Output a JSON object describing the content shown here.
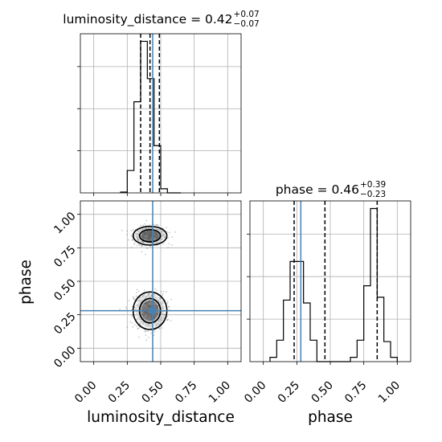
{
  "chart_data": {
    "type": "corner",
    "truth_color": "#4682b4",
    "params": [
      {
        "name": "luminosity_distance",
        "title": {
          "prefix": "luminosity_distance = ",
          "median": "0.42",
          "plus": "+0.07",
          "minus": "−0.07"
        },
        "range": [
          -0.1,
          1.1
        ],
        "ticks": [
          "0.00",
          "0.25",
          "0.50",
          "0.75",
          "1.00"
        ],
        "tick_values": [
          0,
          0.25,
          0.5,
          0.75,
          1.0
        ],
        "truth": 0.44,
        "quantiles": [
          0.35,
          0.42,
          0.49
        ],
        "hist": {
          "edges": [
            0.2,
            0.25,
            0.3,
            0.35,
            0.4,
            0.45,
            0.5,
            0.55,
            0.6,
            0.65
          ],
          "counts": [
            1,
            27,
            110,
            183,
            138,
            57,
            5,
            0,
            0
          ]
        }
      },
      {
        "name": "phase",
        "title": {
          "prefix": "phase = ",
          "median": "0.46",
          "plus": "+0.39",
          "minus": "−0.23"
        },
        "range": [
          -0.1,
          1.1
        ],
        "ticks": [
          "0.00",
          "0.25",
          "0.50",
          "0.75",
          "1.00"
        ],
        "tick_values": [
          0,
          0.25,
          0.5,
          0.75,
          1.0
        ],
        "truth": 0.28,
        "quantiles": [
          0.23,
          0.46,
          0.85
        ],
        "hist": {
          "edges": [
            0.05,
            0.1,
            0.15,
            0.2,
            0.25,
            0.3,
            0.35,
            0.4,
            0.45,
            0.5,
            0.55,
            0.6,
            0.65,
            0.7,
            0.75,
            0.8,
            0.85,
            0.9,
            0.95,
            1.0
          ],
          "counts": [
            3,
            15,
            43,
            70,
            70,
            41,
            15,
            0,
            0,
            0,
            0,
            0,
            3,
            15,
            53,
            107,
            45,
            14,
            3
          ]
        }
      }
    ],
    "joint": {
      "x_param": "luminosity_distance",
      "y_param": "phase",
      "modes": [
        {
          "x": 0.42,
          "y": 0.84,
          "sx": 0.06,
          "sy": 0.035,
          "weight": 0.5
        },
        {
          "x": 0.42,
          "y": 0.28,
          "sx": 0.06,
          "sy": 0.07,
          "weight": 0.5
        }
      ]
    },
    "xlabels": [
      "luminosity_distance",
      "phase"
    ],
    "ylabels": [
      "phase"
    ]
  }
}
